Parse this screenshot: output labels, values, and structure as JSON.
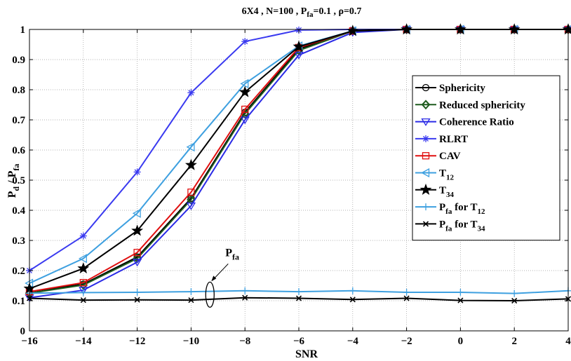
{
  "chart_data": {
    "type": "line",
    "title": {
      "main": "6X4  , N=100 , P",
      "sub1": "fa",
      "mid": "=0.1 , ρ=0.7"
    },
    "xlabel": "SNR",
    "ylabel": {
      "main": "P",
      "sub1": "d",
      "mid": " / P",
      "sub2": "fa"
    },
    "xlim": [
      -16,
      4
    ],
    "ylim": [
      0,
      1
    ],
    "xticks": [
      -16,
      -14,
      -12,
      -10,
      -8,
      -6,
      -4,
      -2,
      0,
      2,
      4
    ],
    "yticks": [
      0,
      0.1,
      0.2,
      0.3,
      0.4,
      0.5,
      0.6,
      0.7,
      0.8,
      0.9,
      1
    ],
    "x": [
      -16,
      -14,
      -12,
      -10,
      -8,
      -6,
      -4,
      -2,
      0,
      2,
      4
    ],
    "grid": true,
    "legend_position": "right",
    "series": [
      {
        "name": "Sphericity",
        "sub": "",
        "color": "#000000",
        "marker": "circle",
        "values": [
          0.13,
          0.155,
          0.245,
          0.44,
          0.725,
          0.935,
          0.995,
          1,
          1,
          1,
          1
        ]
      },
      {
        "name": "Reduced sphericity",
        "sub": "",
        "color": "#1f5c1f",
        "marker": "diamond",
        "values": [
          0.125,
          0.152,
          0.24,
          0.435,
          0.72,
          0.93,
          0.995,
          1,
          1,
          1,
          1
        ]
      },
      {
        "name": "Coherence Ratio",
        "sub": "",
        "color": "#2a2ae6",
        "marker": "triangle-down",
        "values": [
          0.11,
          0.135,
          0.228,
          0.415,
          0.7,
          0.915,
          0.99,
          1,
          1,
          1,
          1
        ]
      },
      {
        "name": "RLRT",
        "sub": "",
        "color": "#3a3af0",
        "marker": "asterisk",
        "values": [
          0.2,
          0.315,
          0.527,
          0.79,
          0.96,
          0.998,
          1,
          1,
          1,
          1,
          1
        ]
      },
      {
        "name": "CAV",
        "sub": "",
        "color": "#e01010",
        "marker": "square",
        "values": [
          0.13,
          0.16,
          0.26,
          0.46,
          0.735,
          0.94,
          0.995,
          1,
          1,
          1,
          1
        ]
      },
      {
        "name": "T",
        "sub": "12",
        "color": "#3ea0e0",
        "marker": "triangle-left",
        "values": [
          0.158,
          0.24,
          0.39,
          0.61,
          0.82,
          0.945,
          0.995,
          1,
          1,
          1,
          1
        ]
      },
      {
        "name": "T",
        "sub": "34",
        "color": "#000000",
        "marker": "star",
        "values": [
          0.14,
          0.207,
          0.332,
          0.55,
          0.792,
          0.943,
          0.995,
          1,
          1,
          1,
          1
        ]
      },
      {
        "name": "P",
        "sub": "fa",
        "suffix": " for T",
        "sub2": "12",
        "color": "#3ea0e0",
        "marker": "plus",
        "values": [
          0.125,
          0.127,
          0.128,
          0.13,
          0.133,
          0.13,
          0.133,
          0.128,
          0.128,
          0.124,
          0.133
        ]
      },
      {
        "name": "P",
        "sub": "fa",
        "suffix": " for T",
        "sub2": "34",
        "color": "#000000",
        "marker": "x",
        "values": [
          0.108,
          0.102,
          0.103,
          0.102,
          0.11,
          0.108,
          0.104,
          0.108,
          0.101,
          0.1,
          0.106
        ]
      }
    ],
    "annotation": {
      "main": "P",
      "sub": "fa",
      "x": -9.3,
      "y": 0.12
    }
  }
}
